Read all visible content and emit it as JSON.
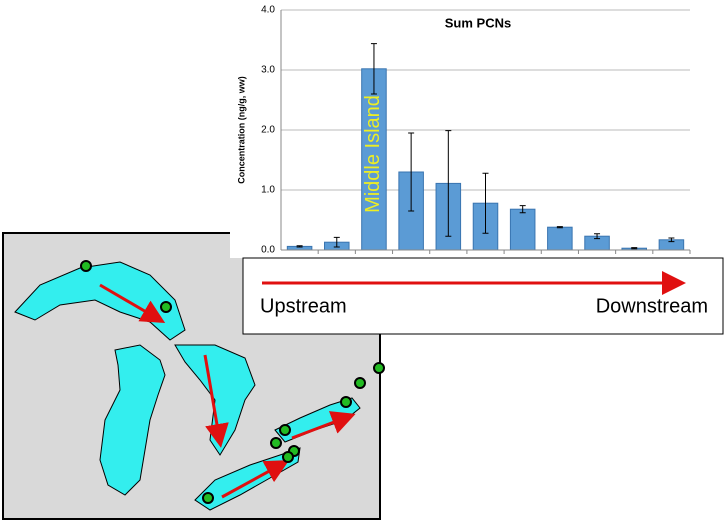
{
  "chart_data": {
    "type": "bar",
    "title": "Sum PCNs",
    "y_label": "Concentration (ng/g, ww)",
    "categories": [
      null,
      null,
      null,
      null,
      null,
      null,
      null,
      null,
      null,
      null,
      null
    ],
    "series": [
      {
        "name": null,
        "color": "#5b9bd5",
        "values": [
          0.06,
          0.13,
          3.02,
          1.3,
          1.11,
          0.78,
          0.68,
          0.38,
          0.23,
          0.03,
          0.17
        ],
        "errors": [
          0.01,
          0.08,
          0.42,
          0.65,
          0.88,
          0.5,
          0.06,
          0.01,
          0.04,
          0.01,
          0.03
        ]
      }
    ],
    "ylim": [
      0,
      4
    ],
    "yticks": [
      {
        "value": 0,
        "label": "0.0"
      },
      {
        "value": 1,
        "label": "1.0"
      },
      {
        "value": 2,
        "label": "2.0"
      },
      {
        "value": 3,
        "label": "3.0"
      },
      {
        "value": 4,
        "label": "4.0"
      }
    ],
    "grid": true,
    "annotations": [
      "Middle Island",
      "Upstream",
      "Downstream"
    ]
  }
}
